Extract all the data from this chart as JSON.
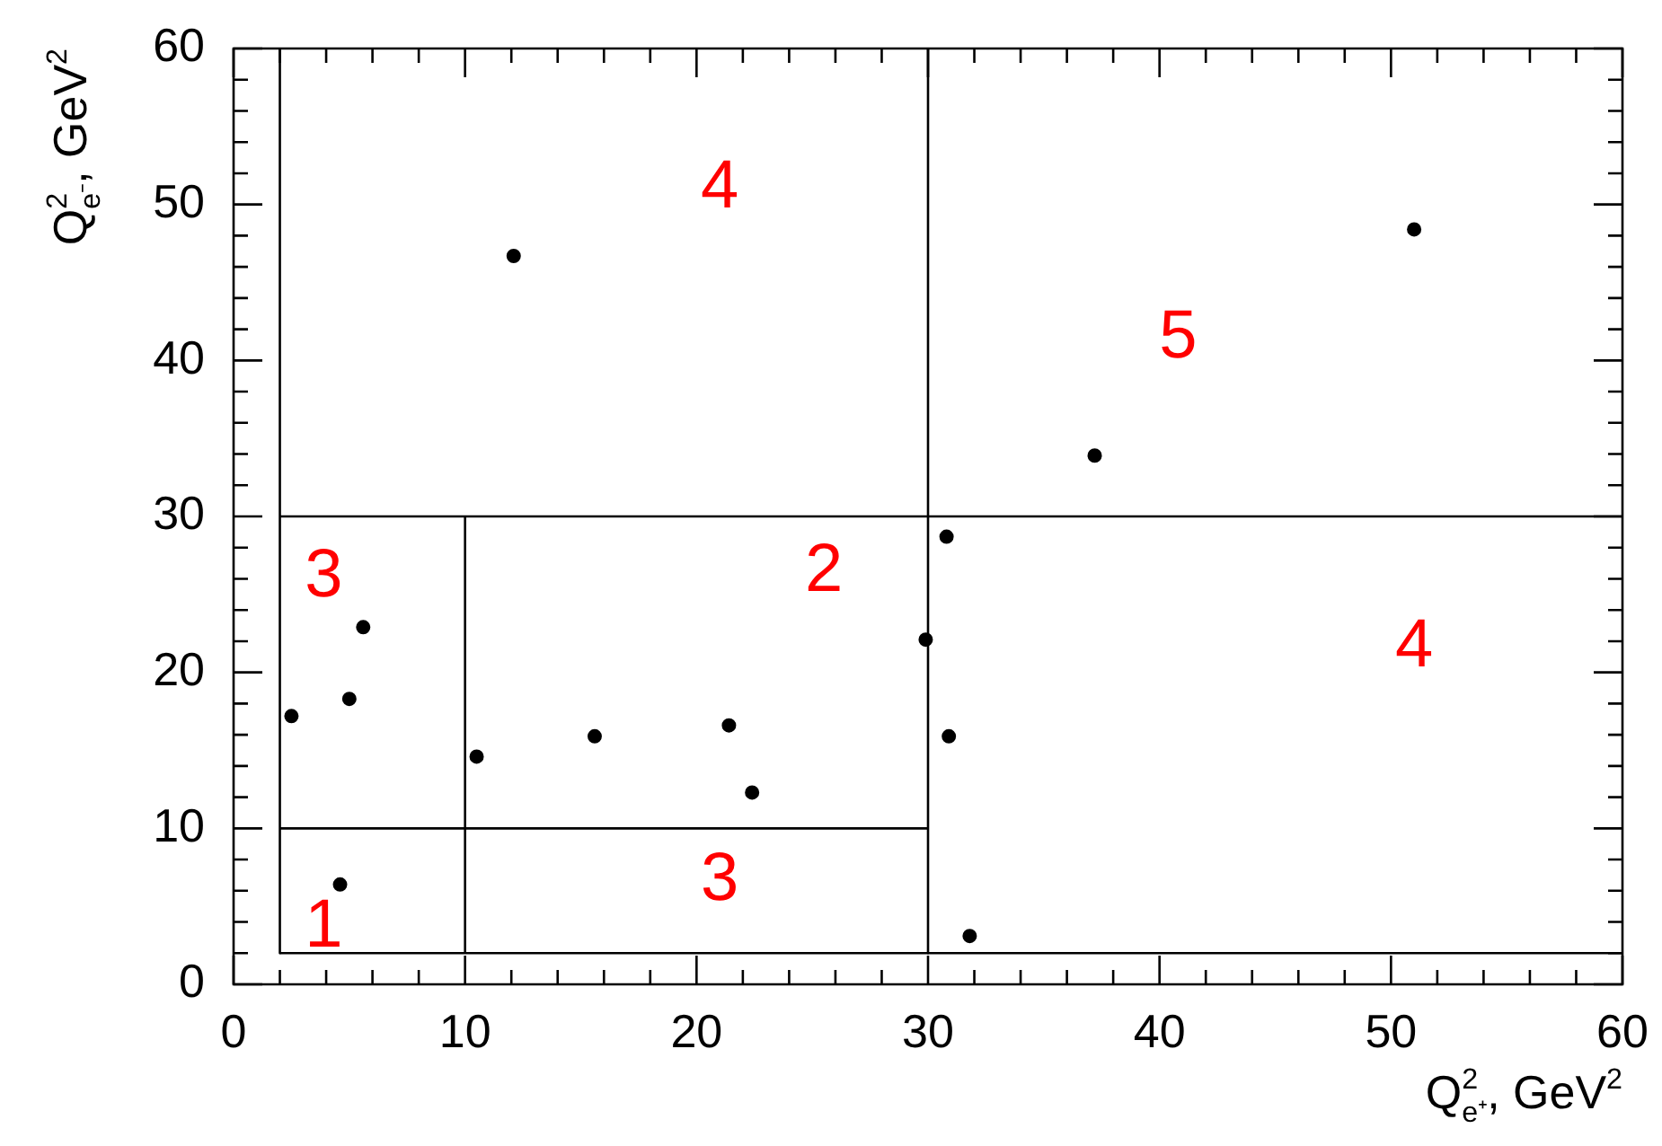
{
  "chart_data": {
    "type": "scatter",
    "xlabel": "Q$^{2}$$_{e⁺}$, GeV$^{2}$",
    "ylabel": "Q$^{2}$$_{e⁻}$, GeV$^{2}$",
    "xlim": [
      0,
      60
    ],
    "ylim": [
      0,
      60
    ],
    "xticks": [
      0,
      {
        "value": 2,
        "label": null
      },
      {
        "value": 4,
        "label": null
      },
      {
        "value": 6,
        "label": null
      },
      {
        "value": 8,
        "label": null
      },
      10,
      {
        "value": 12,
        "label": null
      },
      {
        "value": 14,
        "label": null
      },
      {
        "value": 16,
        "label": null
      },
      {
        "value": 18,
        "label": null
      },
      20,
      {
        "value": 22,
        "label": null
      },
      {
        "value": 24,
        "label": null
      },
      {
        "value": 26,
        "label": null
      },
      {
        "value": 28,
        "label": null
      },
      30,
      {
        "value": 32,
        "label": null
      },
      {
        "value": 34,
        "label": null
      },
      {
        "value": 36,
        "label": null
      },
      {
        "value": 38,
        "label": null
      },
      40,
      {
        "value": 42,
        "label": null
      },
      {
        "value": 44,
        "label": null
      },
      {
        "value": 46,
        "label": null
      },
      {
        "value": 48,
        "label": null
      },
      50,
      {
        "value": 52,
        "label": null
      },
      {
        "value": 54,
        "label": null
      },
      {
        "value": 56,
        "label": null
      },
      {
        "value": 58,
        "label": null
      },
      60
    ],
    "yticks": [
      0,
      {
        "value": 2,
        "label": null
      },
      {
        "value": 4,
        "label": null
      },
      {
        "value": 6,
        "label": null
      },
      {
        "value": 8,
        "label": null
      },
      10,
      {
        "value": 12,
        "label": null
      },
      {
        "value": 14,
        "label": null
      },
      {
        "value": 16,
        "label": null
      },
      {
        "value": 18,
        "label": null
      },
      20,
      {
        "value": 22,
        "label": null
      },
      {
        "value": 24,
        "label": null
      },
      {
        "value": 26,
        "label": null
      },
      {
        "value": 28,
        "label": null
      },
      30,
      {
        "value": 32,
        "label": null
      },
      {
        "value": 34,
        "label": null
      },
      {
        "value": 36,
        "label": null
      },
      {
        "value": 38,
        "label": null
      },
      40,
      {
        "value": 42,
        "label": null
      },
      {
        "value": 44,
        "label": null
      },
      {
        "value": 46,
        "label": null
      },
      {
        "value": 48,
        "label": null
      },
      50,
      {
        "value": 52,
        "label": null
      },
      {
        "value": 54,
        "label": null
      },
      {
        "value": 56,
        "label": null
      },
      {
        "value": 58,
        "label": null
      },
      60
    ],
    "grid": false,
    "legend": false,
    "marker": "circle",
    "series": [
      {
        "color": "#000000",
        "x": [
          2.5,
          4.6,
          5.0,
          5.6,
          10.5,
          12.1,
          15.6,
          21.4,
          22.4,
          29.9,
          30.8,
          30.9,
          31.8,
          37.2,
          51.0
        ],
        "values": [
          17.2,
          6.4,
          18.3,
          22.9,
          14.6,
          46.7,
          15.9,
          16.6,
          12.3,
          22.1,
          28.7,
          15.9,
          3.1,
          33.9,
          48.4
        ]
      },
      {
        "type": "line",
        "marker": "none",
        "color": "#000000",
        "x": [
          2,
          2
        ],
        "values": [
          60,
          2
        ]
      },
      {
        "type": "line",
        "marker": "none",
        "color": "#000000",
        "x": [
          10,
          10
        ],
        "values": [
          2,
          30
        ]
      },
      {
        "type": "line",
        "marker": "none",
        "color": "#000000",
        "x": [
          30,
          30
        ],
        "values": [
          60,
          2
        ]
      },
      {
        "type": "line",
        "marker": "none",
        "color": "#000000",
        "x": [
          2,
          60
        ],
        "values": [
          2,
          2
        ]
      },
      {
        "type": "line",
        "marker": "none",
        "color": "#000000",
        "x": [
          2,
          30
        ],
        "values": [
          10,
          10
        ]
      },
      {
        "type": "line",
        "marker": "none",
        "color": "#000000",
        "x": [
          2,
          60
        ],
        "values": [
          30,
          30
        ]
      }
    ],
    "annotations": [
      "4",
      "5",
      "3",
      "2",
      "4",
      "3",
      "1"
    ]
  }
}
